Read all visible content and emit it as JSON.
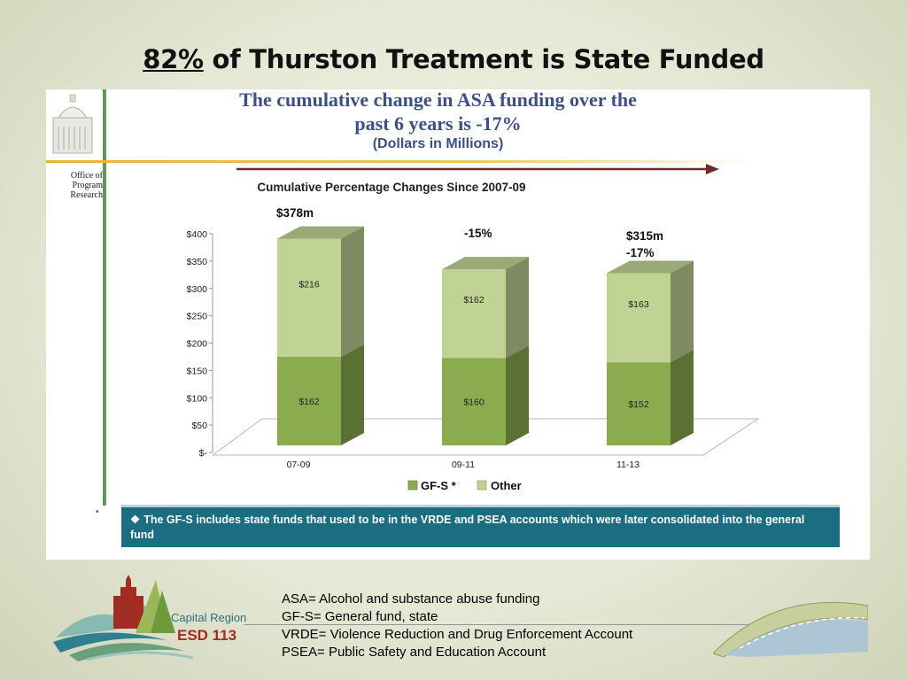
{
  "slide": {
    "title_highlight": "82%",
    "title_rest": " of Thurston Treatment is State Funded"
  },
  "panel": {
    "heading_line1": "The cumulative change in ASA funding over the",
    "heading_line2": "past 6 years is -17%",
    "subheading": "(Dollars in Millions)",
    "office_label": [
      "Office of",
      "Program",
      "Research"
    ],
    "note_bullet": "❖",
    "note": "The GF-S includes state funds that used to be in the VRDE and  PSEA accounts which were later  consolidated into the general fund",
    "side_bullet": "•"
  },
  "chart_data": {
    "type": "bar",
    "stacked": true,
    "title": "Cumulative Percentage Changes Since  2007-09",
    "categories": [
      "07-09",
      "09-11",
      "11-13"
    ],
    "series": [
      {
        "name": "GF-S *",
        "values": [
          162,
          160,
          152
        ],
        "labels": [
          "$162",
          "$160",
          "$152"
        ],
        "color": "#8aab4e"
      },
      {
        "name": "Other",
        "values": [
          216,
          162,
          163
        ],
        "labels": [
          "$216",
          "$162",
          "$163"
        ],
        "color": "#bfd392"
      }
    ],
    "yticks": [
      0,
      50,
      100,
      150,
      200,
      250,
      300,
      350,
      400
    ],
    "ytick_labels": [
      "$-",
      "$50",
      "$100",
      "$150",
      "$200",
      "$250",
      "$300",
      "$350",
      "$400"
    ],
    "ylim": [
      0,
      400
    ],
    "annotations": [
      {
        "category": "07-09",
        "lines": [
          "$378m"
        ]
      },
      {
        "category": "09-11",
        "lines": [
          "-15%"
        ]
      },
      {
        "category": "11-13",
        "lines": [
          "$315m",
          "-17%"
        ]
      }
    ],
    "legend_position": "bottom",
    "colors": {
      "gfs_front": "#8aab4e",
      "gfs_side": "#5b7033",
      "other_front": "#bfd392",
      "other_side": "#7f8a62",
      "top": "#9aa978",
      "arrow": "#7a2525"
    }
  },
  "definitions": [
    "ASA= Alcohol and substance abuse funding",
    "GF-S= General fund, state",
    "VRDE= Violence Reduction and Drug Enforcement Account",
    "PSEA= Public Safety and Education Account"
  ],
  "logo": {
    "line1": "Capital Region",
    "line2": "ESD 113"
  }
}
